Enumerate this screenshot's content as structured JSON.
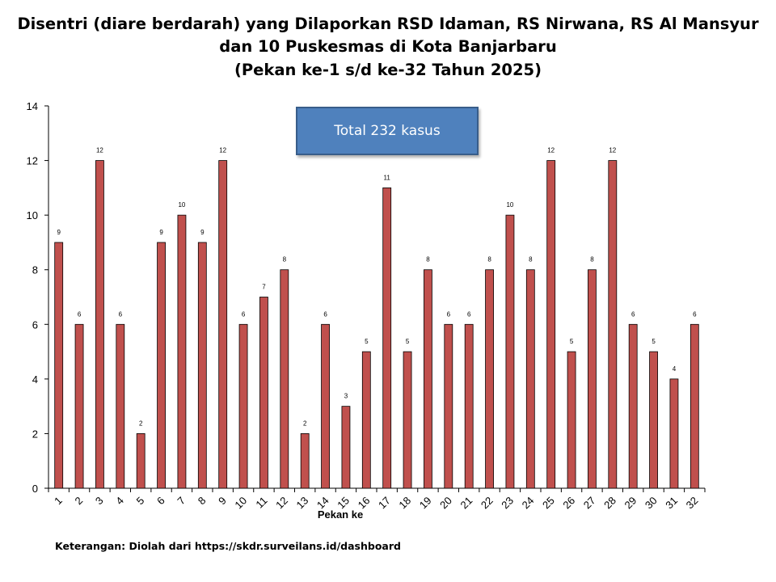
{
  "title_lines": [
    "Disentri (diare berdarah) yang Dilaporkan RSD Idaman, RS Nirwana, RS Al Mansyur",
    "dan 10 Puskesmas di Kota Banjarbaru",
    "(Pekan ke-1 s/d ke-32 Tahun 2025)"
  ],
  "annotation": "Total 232 kasus",
  "footnote": "Keterangan: Diolah dari https://skdr.surveilans.id/dashboard",
  "colors": {
    "bar": "#c0504d",
    "bar_edge": "#000000",
    "annotation_fill": "#4f81bd"
  },
  "chart_data": {
    "type": "bar",
    "categories": [
      "1",
      "2",
      "3",
      "4",
      "5",
      "6",
      "7",
      "8",
      "9",
      "10",
      "11",
      "12",
      "13",
      "14",
      "15",
      "16",
      "17",
      "18",
      "19",
      "20",
      "21",
      "22",
      "23",
      "24",
      "25",
      "26",
      "27",
      "28",
      "29",
      "30",
      "31",
      "32"
    ],
    "values": [
      9,
      6,
      12,
      6,
      2,
      9,
      10,
      9,
      12,
      6,
      7,
      8,
      2,
      6,
      3,
      5,
      11,
      5,
      8,
      6,
      6,
      8,
      10,
      8,
      12,
      5,
      8,
      12,
      6,
      5,
      4,
      6
    ],
    "xlabel": "Pekan ke",
    "ylabel": "",
    "ylim": [
      0,
      14
    ],
    "yticks": [
      0,
      2,
      4,
      6,
      8,
      10,
      12,
      14
    ],
    "grid": false,
    "data_labels": true
  }
}
